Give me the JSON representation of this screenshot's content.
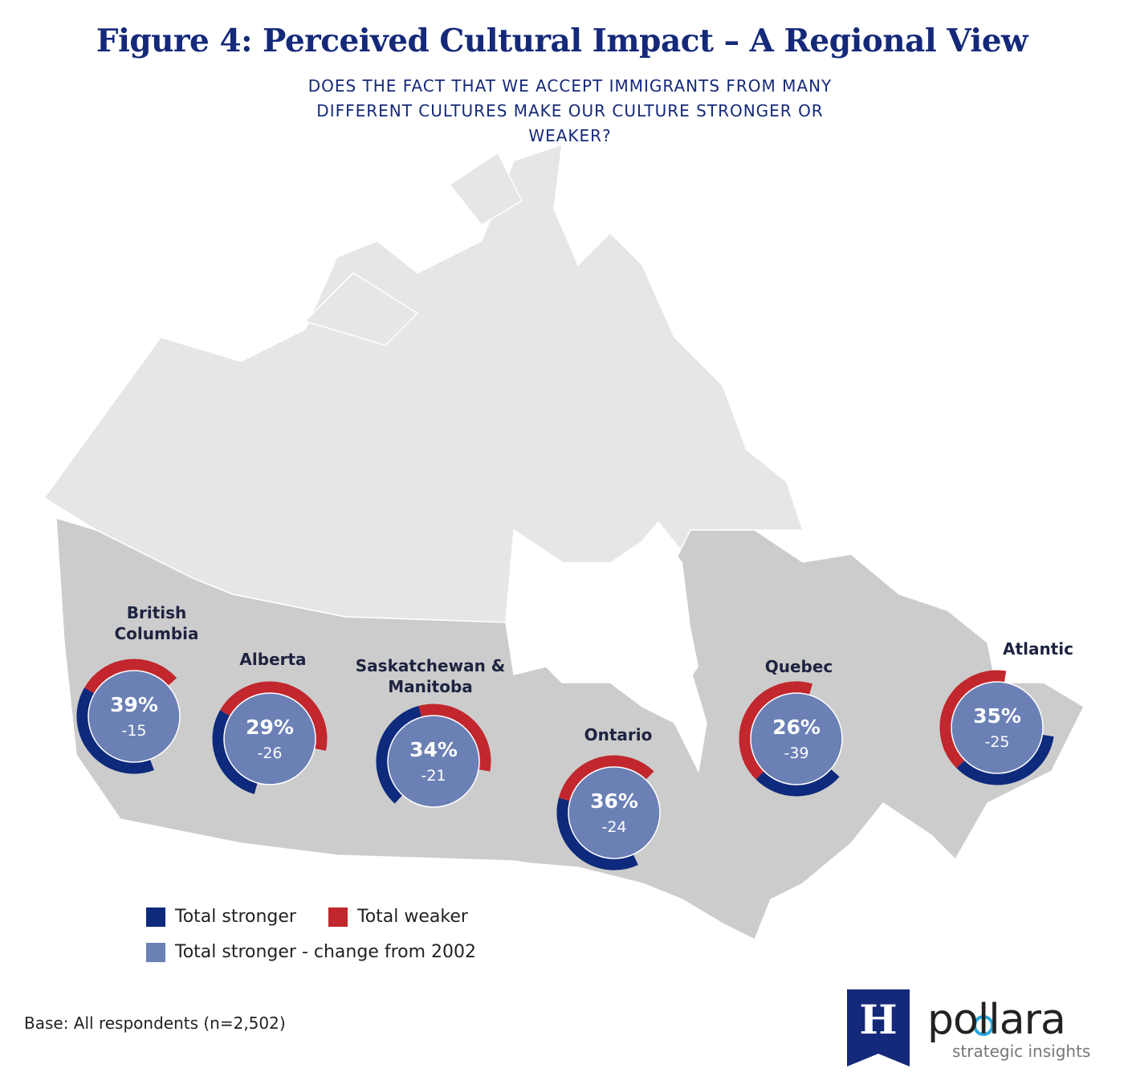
{
  "chart_data": {
    "type": "donut-map",
    "title": "Figure 4: Perceived Cultural Impact – A Regional View",
    "subtitle": "DOES THE FACT THAT WE ACCEPT IMMIGRANTS FROM MANY DIFFERENT CULTURES MAKE OUR CULTURE STRONGER OR WEAKER?",
    "categories": [
      "British Columbia",
      "Alberta",
      "Saskatchewan & Manitoba",
      "Ontario",
      "Quebec",
      "Atlantic"
    ],
    "series": [
      {
        "name": "Total stronger",
        "color": "#0d2a7c",
        "values": [
          39,
          29,
          34,
          36,
          26,
          35
        ],
        "value_labels": [
          "39%",
          "29%",
          "34%",
          "36%",
          "26%",
          "35%"
        ]
      },
      {
        "name": "Total weaker",
        "color": "#c1272d",
        "values": [
          30,
          45,
          32,
          33,
          42,
          40
        ]
      }
    ],
    "change": {
      "name": "Total stronger - change from 2002",
      "color": "#6b80b5",
      "values": [
        -15,
        -26,
        -21,
        -24,
        -39,
        -25
      ]
    },
    "note": "Base: All respondents (n=2,502)"
  },
  "logo": {
    "mark": "H",
    "name": "pollara",
    "tagline": "strategic insights"
  }
}
